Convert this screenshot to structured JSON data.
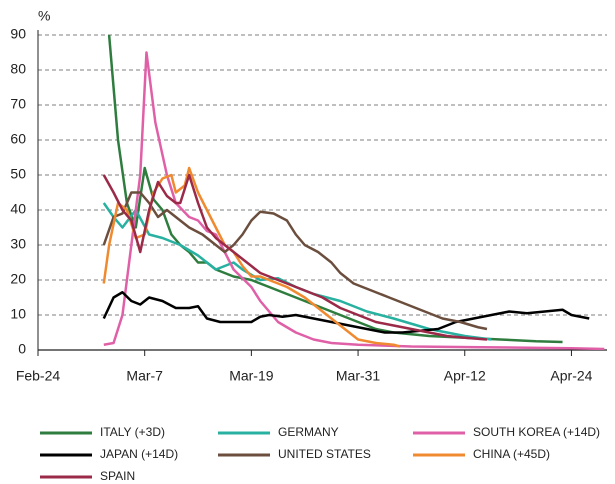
{
  "chart_data": {
    "type": "line",
    "y_label": "%",
    "xlim": [
      0,
      64
    ],
    "xticks": [
      {
        "value": 0,
        "label": "Feb-24"
      },
      {
        "value": 12,
        "label": "Mar-7"
      },
      {
        "value": 24,
        "label": "Mar-19"
      },
      {
        "value": 36,
        "label": "Mar-31"
      },
      {
        "value": 48,
        "label": "Apr-12"
      },
      {
        "value": 60,
        "label": "Apr-24"
      }
    ],
    "ylim": [
      0,
      90
    ],
    "yticks": [
      0,
      10,
      20,
      30,
      40,
      50,
      60,
      70,
      80,
      90
    ],
    "grid": true,
    "series": [
      {
        "name": "ITALY (+3D)",
        "color": "#2e7d3e",
        "x": [
          8,
          9,
          10,
          11,
          12,
          13,
          14,
          15,
          16,
          17,
          18,
          19,
          20,
          22,
          24,
          26,
          28,
          30,
          32,
          34,
          36,
          38,
          40,
          44,
          48,
          52,
          56,
          59
        ],
        "values": [
          90,
          60,
          42,
          35,
          52,
          43,
          40,
          33,
          30,
          28,
          25,
          25,
          23,
          21,
          20,
          18,
          16,
          14,
          12,
          10,
          8,
          6,
          5,
          4,
          3.5,
          3,
          2.5,
          2.3
        ]
      },
      {
        "name": "GERMANY",
        "color": "#28b0a0",
        "x": [
          7.4,
          8.5,
          9.5,
          11,
          12.5,
          14,
          16,
          18,
          20,
          22,
          23,
          25,
          27,
          29,
          31,
          34,
          37,
          40,
          44,
          48,
          51
        ],
        "values": [
          42,
          38,
          35,
          40,
          33,
          32,
          30,
          27,
          23,
          25,
          23,
          20,
          20.5,
          18,
          16,
          14,
          11,
          9,
          6,
          4,
          3
        ]
      },
      {
        "name": "SOUTH KOREA (+14D)",
        "color": "#e060a8",
        "x": [
          7.4,
          8.5,
          9.5,
          10.5,
          11.5,
          12.2,
          13.2,
          14.5,
          15.5,
          17,
          18,
          19,
          20,
          21,
          22,
          24,
          25,
          27,
          29,
          31,
          33,
          36,
          42,
          50,
          60,
          63.7
        ],
        "values": [
          1.5,
          2,
          10,
          30,
          50,
          85,
          65,
          50,
          42,
          38,
          37,
          34,
          33,
          28,
          23,
          18,
          14,
          8,
          5,
          3,
          2,
          1.5,
          1,
          0.8,
          0.5,
          0.3
        ]
      },
      {
        "name": "JAPAN (+14D)",
        "color": "#000000",
        "x": [
          7.4,
          8.5,
          9.5,
          10.5,
          11.5,
          12.5,
          14,
          15.5,
          17,
          18,
          19,
          20.5,
          22,
          24,
          25,
          26,
          27.5,
          29,
          31,
          33,
          35,
          37,
          39,
          41,
          43,
          45,
          47,
          49,
          51,
          53,
          55,
          57,
          59,
          60,
          62
        ],
        "values": [
          9,
          15,
          16.5,
          14,
          13,
          15,
          14,
          12,
          12,
          12.5,
          9,
          8,
          8,
          8,
          9.5,
          10,
          9.5,
          10,
          9,
          8,
          7,
          6,
          5,
          5,
          5.5,
          6,
          8,
          9,
          10,
          11,
          10.5,
          11,
          11.5,
          10,
          9
        ]
      },
      {
        "name": "UNITED STATES",
        "color": "#6b4e3d",
        "x": [
          7.4,
          8.5,
          9.5,
          10.5,
          11.5,
          12.5,
          13.5,
          14.5,
          15.5,
          17,
          18.5,
          20,
          21,
          22,
          23,
          24,
          25,
          26.5,
          28,
          29,
          30,
          31.5,
          33,
          34,
          35.5,
          37.5,
          39.5,
          41.5,
          43.5,
          45.5,
          47.5,
          49.5,
          50.5
        ],
        "values": [
          30,
          38,
          39,
          45,
          45,
          42,
          38,
          40,
          38,
          35,
          33,
          30,
          28,
          30,
          33,
          37,
          39.5,
          39,
          37,
          33,
          30,
          28,
          25,
          22,
          19,
          17,
          15,
          13,
          11,
          9,
          8,
          6.5,
          6
        ]
      },
      {
        "name": "CHINA (+45D)",
        "color": "#f08a30",
        "x": [
          7.4,
          8,
          9,
          10,
          11,
          12,
          13,
          14,
          15,
          15.5,
          16.5,
          17,
          18,
          19,
          20,
          21,
          22,
          23,
          24,
          25,
          26,
          28,
          30,
          32,
          34,
          36,
          38,
          40,
          40.7
        ],
        "values": [
          19,
          30,
          42,
          40,
          32,
          33,
          45,
          49,
          50,
          45,
          47,
          52,
          45,
          40,
          35,
          30,
          28,
          24,
          21,
          21,
          20,
          18,
          15,
          11,
          7,
          3,
          2,
          1.5,
          1
        ]
      },
      {
        "name": "SPAIN",
        "color": "#9b2a48",
        "x": [
          7.4,
          8.5,
          9.5,
          10.5,
          11.5,
          12.5,
          13.5,
          14.5,
          15.5,
          16,
          17,
          18,
          19,
          20,
          21,
          22,
          23,
          24,
          25,
          26,
          28,
          30,
          32,
          34,
          36,
          38,
          40,
          42,
          44,
          46,
          48,
          50.5
        ],
        "values": [
          50,
          45,
          40,
          37,
          28,
          40,
          48,
          44,
          42,
          42,
          50,
          42,
          35,
          32,
          30,
          28,
          26,
          24,
          22,
          21,
          19,
          17,
          15,
          12,
          10,
          8,
          7,
          6,
          5,
          4,
          3.5,
          3
        ]
      }
    ]
  }
}
